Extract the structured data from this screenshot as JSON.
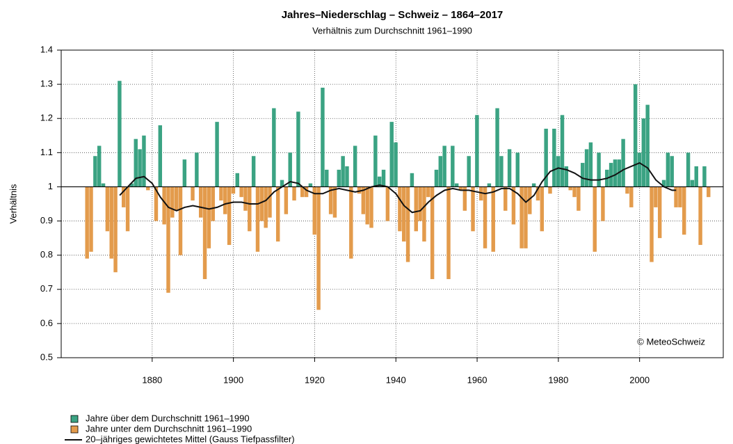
{
  "chart_data": {
    "type": "bar",
    "title": "Jahres–Niederschlag – Schweiz – 1864–2017",
    "subtitle": "Verhältnis zum Durchschnitt 1961–1990",
    "ylabel": "Verhältnis",
    "annotation": "© MeteoSchweiz",
    "baseline": 1,
    "above_color": "#3ba383",
    "below_color": "#e39b4c",
    "legend": [
      {
        "name": "Jahre über dem Durchschnitt 1961–1990",
        "color": "#3ba383"
      },
      {
        "name": "Jahre unter dem Durchschnitt 1961–1990",
        "color": "#e39b4c"
      }
    ],
    "x": [
      1864,
      1865,
      1866,
      1867,
      1868,
      1869,
      1870,
      1871,
      1872,
      1873,
      1874,
      1875,
      1876,
      1877,
      1878,
      1879,
      1880,
      1881,
      1882,
      1883,
      1884,
      1885,
      1886,
      1887,
      1888,
      1889,
      1890,
      1891,
      1892,
      1893,
      1894,
      1895,
      1896,
      1897,
      1898,
      1899,
      1900,
      1901,
      1902,
      1903,
      1904,
      1905,
      1906,
      1907,
      1908,
      1909,
      1910,
      1911,
      1912,
      1913,
      1914,
      1915,
      1916,
      1917,
      1918,
      1919,
      1920,
      1921,
      1922,
      1923,
      1924,
      1925,
      1926,
      1927,
      1928,
      1929,
      1930,
      1931,
      1932,
      1933,
      1934,
      1935,
      1936,
      1937,
      1938,
      1939,
      1940,
      1941,
      1942,
      1943,
      1944,
      1945,
      1946,
      1947,
      1948,
      1949,
      1950,
      1951,
      1952,
      1953,
      1954,
      1955,
      1956,
      1957,
      1958,
      1959,
      1960,
      1961,
      1962,
      1963,
      1964,
      1965,
      1966,
      1967,
      1968,
      1969,
      1970,
      1971,
      1972,
      1973,
      1974,
      1975,
      1976,
      1977,
      1978,
      1979,
      1980,
      1981,
      1982,
      1983,
      1984,
      1985,
      1986,
      1987,
      1988,
      1989,
      1990,
      1991,
      1992,
      1993,
      1994,
      1995,
      1996,
      1997,
      1998,
      1999,
      2000,
      2001,
      2002,
      2003,
      2004,
      2005,
      2006,
      2007,
      2008,
      2009,
      2010,
      2011,
      2012,
      2013,
      2014,
      2015,
      2016,
      2017
    ],
    "values": [
      0.79,
      0.81,
      1.09,
      1.12,
      1.01,
      0.87,
      0.79,
      0.75,
      1.31,
      0.94,
      0.87,
      1.01,
      1.14,
      1.11,
      1.15,
      0.99,
      1.0,
      0.9,
      1.18,
      0.89,
      0.69,
      0.91,
      0.93,
      0.8,
      1.08,
      1.0,
      0.96,
      1.1,
      0.91,
      0.73,
      0.82,
      0.9,
      1.19,
      0.96,
      0.92,
      0.83,
      0.98,
      1.04,
      0.97,
      0.93,
      0.87,
      1.09,
      0.81,
      0.9,
      0.88,
      0.91,
      1.23,
      0.84,
      1.02,
      0.92,
      1.1,
      0.96,
      1.22,
      0.97,
      0.97,
      1.01,
      0.86,
      0.64,
      1.29,
      1.05,
      0.92,
      0.91,
      1.05,
      1.09,
      1.06,
      0.79,
      1.12,
      0.98,
      0.92,
      0.89,
      0.88,
      1.15,
      1.03,
      1.05,
      0.9,
      1.19,
      1.13,
      0.87,
      0.84,
      0.78,
      1.04,
      0.87,
      0.9,
      0.84,
      0.97,
      0.73,
      1.05,
      1.09,
      1.12,
      0.73,
      1.12,
      1.01,
      0.99,
      0.93,
      1.09,
      0.87,
      1.21,
      0.96,
      0.82,
      1.01,
      0.81,
      1.23,
      1.09,
      0.93,
      1.11,
      0.89,
      1.1,
      0.82,
      0.82,
      0.92,
      1.01,
      0.96,
      0.87,
      1.17,
      0.98,
      1.17,
      1.09,
      1.21,
      1.06,
      0.99,
      0.97,
      0.93,
      1.07,
      1.11,
      1.13,
      0.81,
      1.1,
      0.9,
      1.05,
      1.07,
      1.08,
      1.08,
      1.14,
      0.98,
      0.94,
      1.3,
      1.1,
      1.2,
      1.24,
      0.78,
      0.94,
      0.85,
      1.02,
      1.1,
      1.09,
      0.94,
      0.94,
      0.86,
      1.1,
      1.02,
      1.06,
      0.83,
      1.06,
      0.97
    ],
    "line": {
      "name": "20–jähriges gewichtetes Mittel (Gauss Tiefpassfilter)",
      "color": "#111111",
      "x": [
        1872,
        1874,
        1876,
        1878,
        1880,
        1882,
        1884,
        1886,
        1888,
        1890,
        1892,
        1894,
        1896,
        1898,
        1900,
        1902,
        1904,
        1906,
        1908,
        1910,
        1912,
        1914,
        1916,
        1918,
        1920,
        1922,
        1924,
        1926,
        1928,
        1930,
        1932,
        1934,
        1936,
        1938,
        1940,
        1942,
        1944,
        1946,
        1948,
        1950,
        1952,
        1954,
        1956,
        1958,
        1960,
        1962,
        1964,
        1966,
        1968,
        1970,
        1972,
        1974,
        1976,
        1978,
        1980,
        1982,
        1984,
        1986,
        1988,
        1990,
        1992,
        1994,
        1996,
        1998,
        2000,
        2002,
        2004,
        2006,
        2008,
        2009
      ],
      "values": [
        0.975,
        1.0,
        1.025,
        1.03,
        1.01,
        0.97,
        0.94,
        0.93,
        0.94,
        0.945,
        0.94,
        0.935,
        0.94,
        0.95,
        0.955,
        0.955,
        0.95,
        0.95,
        0.96,
        0.985,
        1.0,
        1.015,
        1.01,
        0.99,
        0.98,
        0.98,
        0.99,
        0.995,
        0.99,
        0.985,
        0.99,
        1.0,
        1.005,
        1.0,
        0.98,
        0.945,
        0.925,
        0.93,
        0.955,
        0.975,
        0.99,
        0.995,
        0.99,
        0.99,
        0.985,
        0.98,
        0.985,
        0.995,
        0.995,
        0.98,
        0.955,
        0.975,
        1.015,
        1.045,
        1.055,
        1.05,
        1.04,
        1.025,
        1.02,
        1.02,
        1.025,
        1.035,
        1.05,
        1.06,
        1.07,
        1.055,
        1.02,
        1.0,
        0.99,
        0.99
      ]
    },
    "xlim": [
      1857.6,
      2020.6
    ],
    "xticks": [
      1880,
      1900,
      1920,
      1940,
      1960,
      1980,
      2000
    ],
    "ylim": [
      0.5,
      1.4
    ],
    "yticks": [
      0.5,
      0.6,
      0.7,
      0.8,
      0.9,
      1,
      1.1,
      1.2,
      1.3,
      1.4
    ],
    "grid": true
  }
}
